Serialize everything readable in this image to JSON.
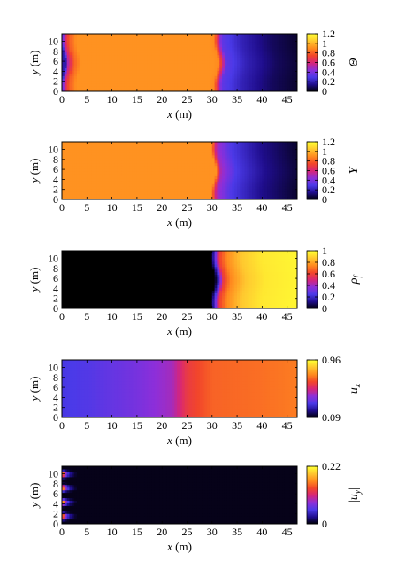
{
  "chart_data": [
    {
      "type": "heatmap",
      "xlabel": "x (m)",
      "ylabel": "y (m)",
      "xlim": [
        0,
        47
      ],
      "ylim": [
        0,
        11.5
      ],
      "xticks": [
        "0",
        "5",
        "10",
        "15",
        "20",
        "25",
        "30",
        "35",
        "40",
        "45"
      ],
      "yticks": [
        "0",
        "2",
        "4",
        "6",
        "8",
        "10"
      ],
      "colorbar": {
        "label": "Θ",
        "range": [
          0,
          1.2
        ],
        "ticks": [
          "0",
          "0.2",
          "0.4",
          "0.6",
          "0.8",
          "1",
          "1.2"
        ]
      },
      "field_profile": {
        "x": [
          0,
          0.5,
          1.5,
          3,
          5,
          29.5,
          30.5,
          32,
          36,
          42,
          47
        ],
        "values": [
          0.2,
          0.55,
          0.8,
          0.92,
          0.92,
          0.92,
          0.9,
          0.35,
          0.22,
          0.1,
          0.05
        ]
      },
      "front_x": 30.5
    },
    {
      "type": "heatmap",
      "xlabel": "x (m)",
      "ylabel": "y (m)",
      "xlim": [
        0,
        47
      ],
      "ylim": [
        0,
        11.5
      ],
      "xticks": [
        "0",
        "5",
        "10",
        "15",
        "20",
        "25",
        "30",
        "35",
        "40",
        "45"
      ],
      "yticks": [
        "0",
        "2",
        "4",
        "6",
        "8",
        "10"
      ],
      "colorbar": {
        "label": "Y",
        "range": [
          0,
          1.2
        ],
        "ticks": [
          "0",
          "0.2",
          "0.4",
          "0.6",
          "0.8",
          "1",
          "1.2"
        ]
      },
      "field_profile": {
        "x": [
          0,
          30,
          31,
          34,
          40,
          47
        ],
        "values": [
          0.92,
          0.92,
          0.5,
          0.3,
          0.15,
          0.05
        ]
      },
      "front_x": 30.5
    },
    {
      "type": "heatmap",
      "xlabel": "x (m)",
      "ylabel": "y (m)",
      "xlim": [
        0,
        47
      ],
      "ylim": [
        0,
        11.5
      ],
      "xticks": [
        "0",
        "5",
        "10",
        "15",
        "20",
        "25",
        "30",
        "35",
        "40",
        "45"
      ],
      "yticks": [
        "0",
        "2",
        "4",
        "6",
        "8",
        "10"
      ],
      "colorbar": {
        "label": "ρf",
        "range": [
          0,
          1
        ],
        "ticks": [
          "0",
          "0.2",
          "0.4",
          "0.6",
          "0.8",
          "1"
        ]
      },
      "field_profile": {
        "x": [
          0,
          29.8,
          30.5,
          31.5,
          33,
          36,
          40,
          47
        ],
        "values": [
          0.0,
          0.0,
          0.2,
          0.6,
          0.75,
          0.88,
          0.95,
          0.98
        ]
      },
      "front_x": 30.5
    },
    {
      "type": "heatmap",
      "xlabel": "x (m)",
      "ylabel": "y (m)",
      "xlim": [
        0,
        47
      ],
      "ylim": [
        0,
        11.5
      ],
      "xticks": [
        "0",
        "5",
        "10",
        "15",
        "20",
        "25",
        "30",
        "35",
        "40",
        "45"
      ],
      "yticks": [
        "0",
        "2",
        "4",
        "6",
        "8",
        "10"
      ],
      "colorbar": {
        "label": "ux",
        "range": [
          0.09,
          0.96
        ],
        "ticks": [
          "0.09",
          "0.96"
        ]
      },
      "field_profile": {
        "x": [
          0,
          5,
          15,
          22,
          25,
          30,
          40,
          47
        ],
        "values": [
          0.3,
          0.32,
          0.38,
          0.45,
          0.6,
          0.68,
          0.7,
          0.72
        ]
      },
      "front_x": null
    },
    {
      "type": "heatmap",
      "xlabel": "x (m)",
      "ylabel": "y (m)",
      "xlim": [
        0,
        47
      ],
      "ylim": [
        0,
        11.5
      ],
      "xticks": [
        "0",
        "5",
        "10",
        "15",
        "20",
        "25",
        "30",
        "35",
        "40",
        "45"
      ],
      "yticks": [
        "0",
        "2",
        "4",
        "6",
        "8",
        "10"
      ],
      "colorbar": {
        "label": "|uy|",
        "range": [
          0,
          0.22
        ],
        "ticks": [
          "0",
          "0.22"
        ]
      },
      "field_profile": {
        "x": [
          0,
          0.5,
          1.5,
          3,
          47
        ],
        "values": [
          0.15,
          0.1,
          0.04,
          0.01,
          0.01
        ]
      },
      "inlet_jets_y": [
        1.6,
        4.4,
        7.2,
        10.0
      ],
      "front_x": null
    }
  ],
  "colormap": [
    "#000000",
    "#1f0d8c",
    "#4b3ae8",
    "#8d2fd9",
    "#d6257a",
    "#f2462b",
    "#ff8a1f",
    "#ffc62f",
    "#ffff33"
  ]
}
